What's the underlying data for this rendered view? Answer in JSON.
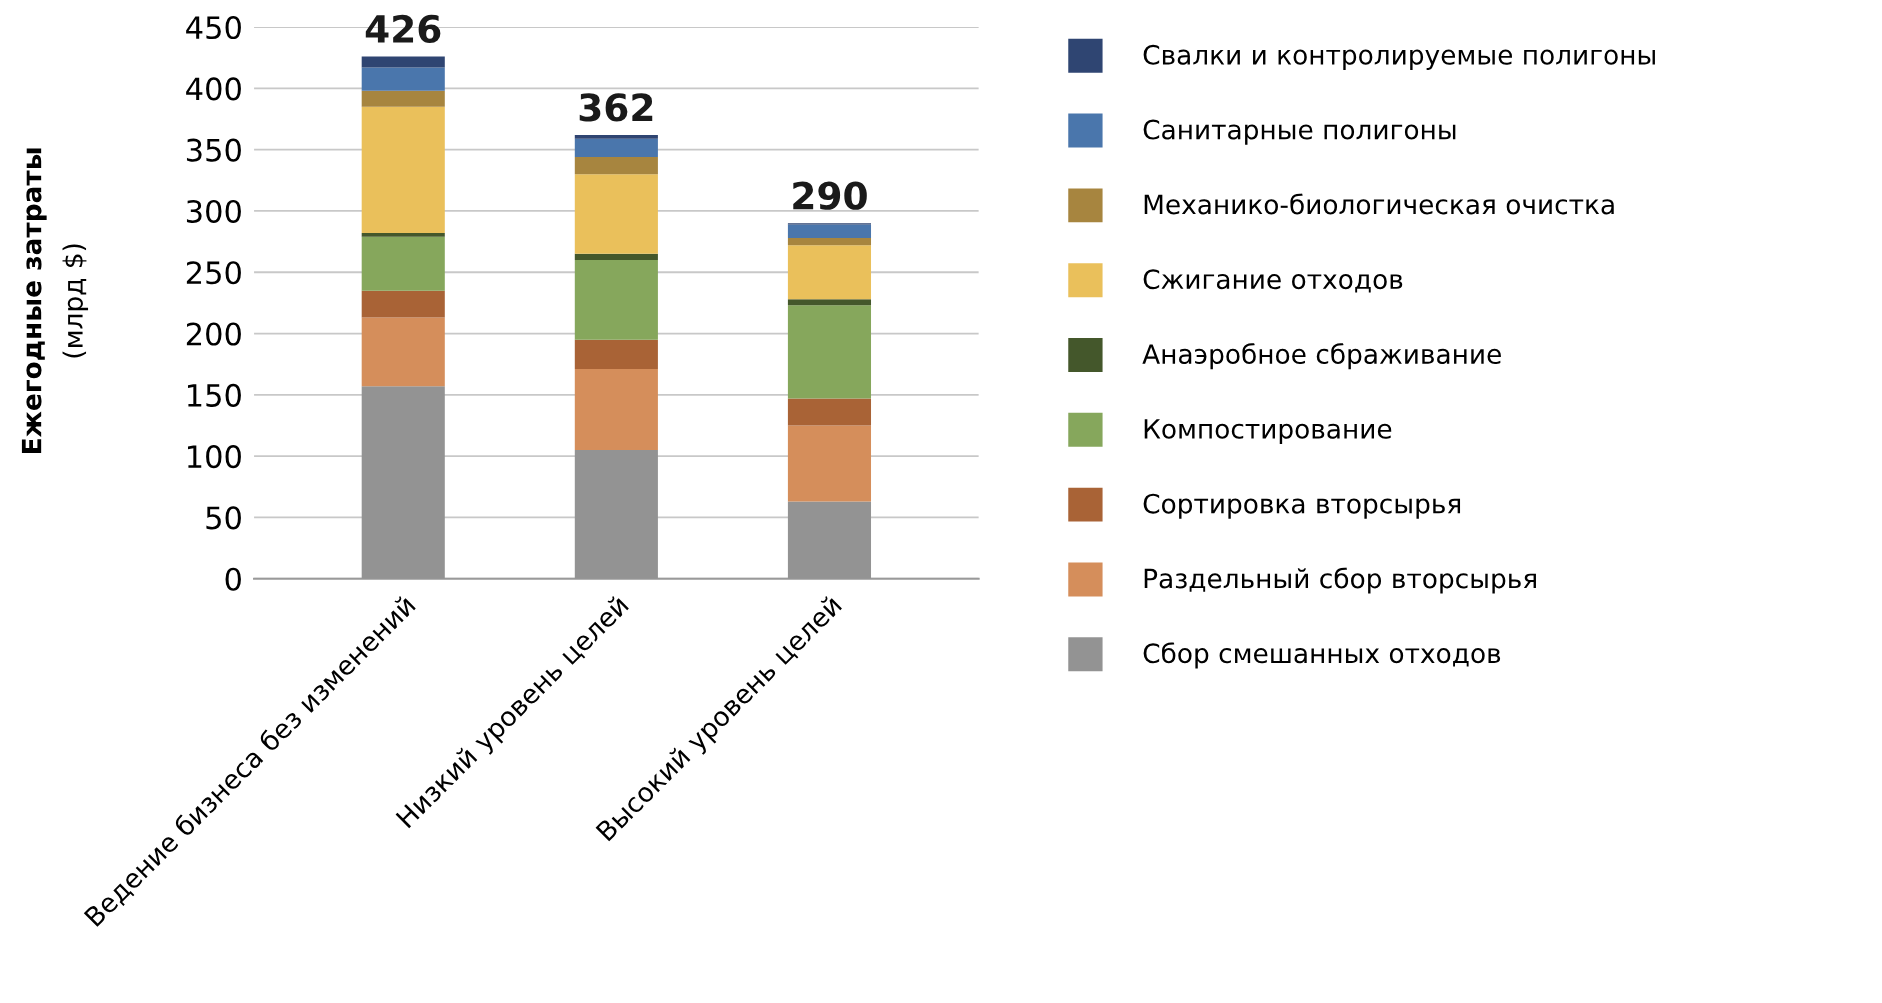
{
  "chart_data": {
    "type": "bar",
    "stacked": true,
    "ylabel": "Ежегодные затраты\n(млрд $)",
    "categories": [
      "Ведение бизнеса без изменений",
      "Низкий уровень целей",
      "Высокий уровень целей"
    ],
    "series": [
      {
        "name": "Сбор смешанных отходов",
        "color": "#939393",
        "values": [
          157,
          105,
          63
        ]
      },
      {
        "name": "Раздельный сбор вторсырья",
        "color": "#d58e5b",
        "values": [
          56,
          66,
          62
        ]
      },
      {
        "name": "Сортировка вторсырья",
        "color": "#a96336",
        "values": [
          22,
          24,
          22
        ]
      },
      {
        "name": "Компостирование",
        "color": "#86a75c",
        "values": [
          44,
          65,
          76
        ]
      },
      {
        "name": "Анаэробное сбраживание",
        "color": "#44572b",
        "values": [
          3,
          5,
          5
        ]
      },
      {
        "name": "Сжигание отходов",
        "color": "#eac05b",
        "values": [
          103,
          65,
          44
        ]
      },
      {
        "name": "Механико-биологическая очистка",
        "color": "#a7853f",
        "values": [
          13,
          14,
          6
        ]
      },
      {
        "name": "Санитарные полигоны",
        "color": "#4a76ac",
        "values": [
          19,
          15,
          11
        ]
      },
      {
        "name": "Свалки и контролируемые полигоны",
        "color": "#2f4572",
        "values": [
          9,
          3,
          1
        ]
      }
    ],
    "totals": [
      "426",
      "362",
      "290"
    ],
    "ylim": [
      0,
      450
    ],
    "yticks": [
      0,
      50,
      100,
      150,
      200,
      250,
      300,
      350,
      400,
      450
    ],
    "grid": "y",
    "legend": "right"
  }
}
